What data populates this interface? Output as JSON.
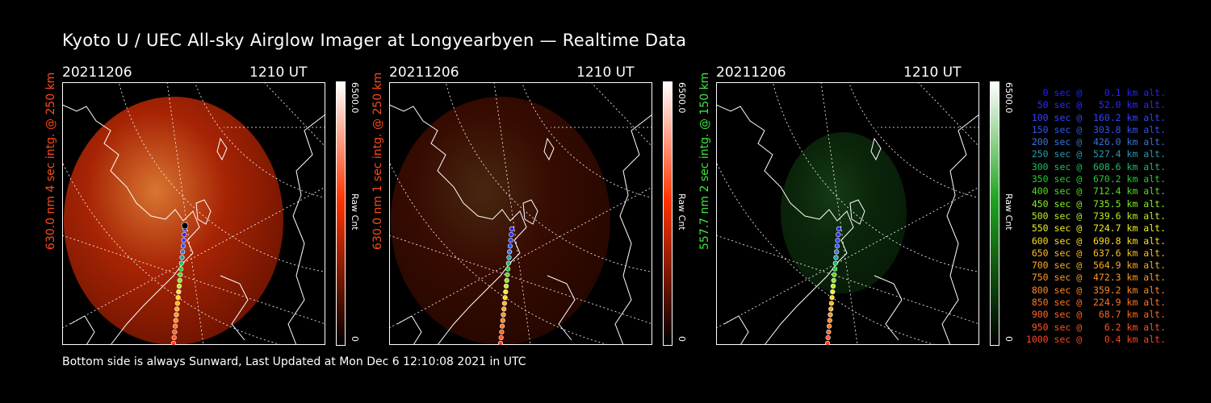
{
  "title": "Kyoto U / UEC All-sky Airglow Imager at Longyearbyen — Realtime Data",
  "footer": "Bottom side is always Sunward, Last Updated at Mon Dec  6 12:10:08 2021 in UTC",
  "panels": [
    {
      "date": "20211206",
      "time": "1210 UT",
      "ylabel": "630.0 nm 4 sec intg. @ 250 km",
      "color": "#ff4a1a",
      "cbar_max": "6500.0",
      "cbar_unit": "Raw Cnt",
      "cbar_min": "0",
      "cbar_color": "#ff3300",
      "intensity": 0.85,
      "image_hue": "red"
    },
    {
      "date": "20211206",
      "time": "1210 UT",
      "ylabel": "630.0 nm 1 sec intg. @ 250 km",
      "color": "#ff4a1a",
      "cbar_max": "6500.0",
      "cbar_unit": "Raw Cnt",
      "cbar_min": "0",
      "cbar_color": "#ff3300",
      "intensity": 0.28,
      "image_hue": "red"
    },
    {
      "date": "20211206",
      "time": "1210 UT",
      "ylabel": "557.7 nm 2 sec intg. @ 150 km",
      "color": "#3de83d",
      "cbar_max": "6500.0",
      "cbar_unit": "Raw Cnt",
      "cbar_min": "0",
      "cbar_color": "#1fa31f",
      "intensity": 0.35,
      "image_hue": "green"
    }
  ],
  "legend": [
    {
      "text": "   0 sec @    0.1 km alt.",
      "color": "#2222ff"
    },
    {
      "text": "  50 sec @   52.0 km alt.",
      "color": "#2a2aff"
    },
    {
      "text": " 100 sec @  160.2 km alt.",
      "color": "#3344ff"
    },
    {
      "text": " 150 sec @  303.8 km alt.",
      "color": "#3355ee"
    },
    {
      "text": " 200 sec @  426.0 km alt.",
      "color": "#3377dd"
    },
    {
      "text": " 250 sec @  527.4 km alt.",
      "color": "#2a99aa"
    },
    {
      "text": " 300 sec @  608.6 km alt.",
      "color": "#22bb66"
    },
    {
      "text": " 350 sec @  670.2 km alt.",
      "color": "#22cc33"
    },
    {
      "text": " 400 sec @  712.4 km alt.",
      "color": "#55dd22"
    },
    {
      "text": " 450 sec @  735.5 km alt.",
      "color": "#88ee22"
    },
    {
      "text": " 500 sec @  739.6 km alt.",
      "color": "#bbee22"
    },
    {
      "text": " 550 sec @  724.7 km alt.",
      "color": "#eeee22"
    },
    {
      "text": " 600 sec @  690.8 km alt.",
      "color": "#ffdd22"
    },
    {
      "text": " 650 sec @  637.6 km alt.",
      "color": "#ffbb22"
    },
    {
      "text": " 700 sec @  564.9 km alt.",
      "color": "#ffaa22"
    },
    {
      "text": " 750 sec @  472.3 km alt.",
      "color": "#ff9922"
    },
    {
      "text": " 800 sec @  359.2 km alt.",
      "color": "#ff8822"
    },
    {
      "text": " 850 sec @  224.9 km alt.",
      "color": "#ff7722"
    },
    {
      "text": " 900 sec @   68.7 km alt.",
      "color": "#ff6622"
    },
    {
      "text": " 950 sec @    6.2 km alt.",
      "color": "#ff5522"
    },
    {
      "text": "1000 sec @    0.4 km alt.",
      "color": "#ff4422"
    }
  ]
}
